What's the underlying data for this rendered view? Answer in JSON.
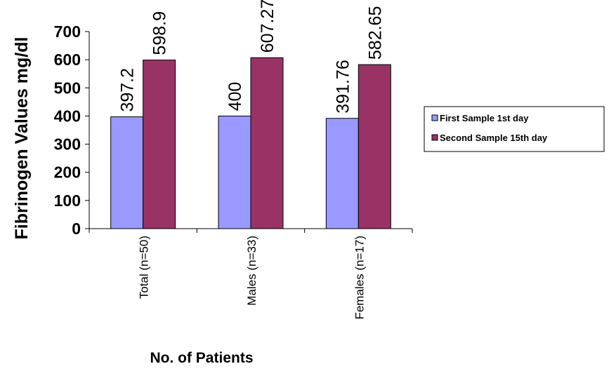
{
  "chart_data": {
    "type": "bar",
    "xlabel": "No. of Patients",
    "ylabel": "Fibrinogen Values mg/dl",
    "ylim": [
      0,
      700
    ],
    "yticks": [
      "0",
      "100",
      "200",
      "300",
      "400",
      "500",
      "600",
      "700"
    ],
    "categories": [
      "Total (n=50)",
      "Males (n=33)",
      "Females (n=17)"
    ],
    "series": [
      {
        "name": "First Sample 1st day",
        "color": "#9999ff",
        "values": [
          397.2,
          400,
          391.76
        ],
        "labels": [
          "397.2",
          "400",
          "391.76"
        ]
      },
      {
        "name": "Second Sample 15th day",
        "color": "#993366",
        "values": [
          598.9,
          607.27,
          582.65
        ],
        "labels": [
          "598.9",
          "607.27",
          "582.65"
        ]
      }
    ],
    "grid": false,
    "legend_position": "right"
  }
}
